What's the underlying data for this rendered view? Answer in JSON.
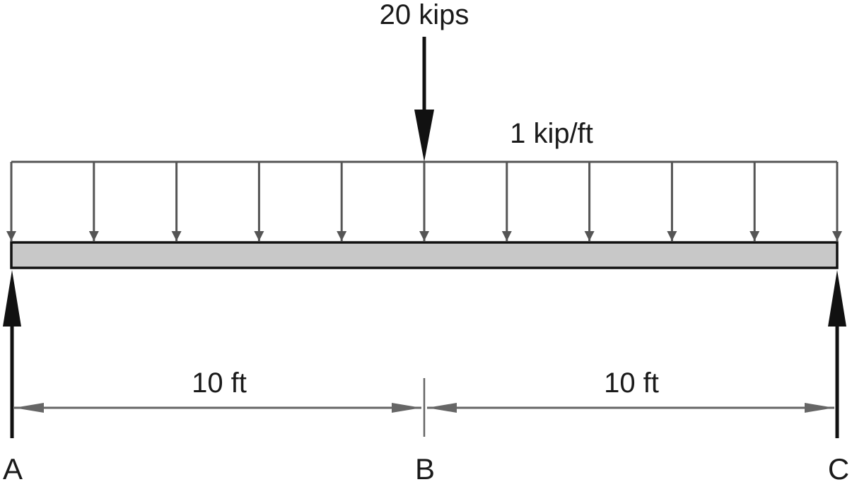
{
  "point_load": {
    "label": "20 kips"
  },
  "distributed_load": {
    "label": "1 kip/ft",
    "arrow_count": 11
  },
  "spans": [
    {
      "label": "10 ft",
      "from": "A",
      "to": "B"
    },
    {
      "label": "10 ft",
      "from": "B",
      "to": "C"
    }
  ],
  "points": [
    {
      "label": "A"
    },
    {
      "label": "B"
    },
    {
      "label": "C"
    }
  ],
  "colors": {
    "beam_fill": "#c8c8c8",
    "beam_stroke": "#111111",
    "load_arrows": "#555555",
    "reaction_arrows": "#111111",
    "dimension_lines": "#666666",
    "text": "#1a1a1a"
  }
}
